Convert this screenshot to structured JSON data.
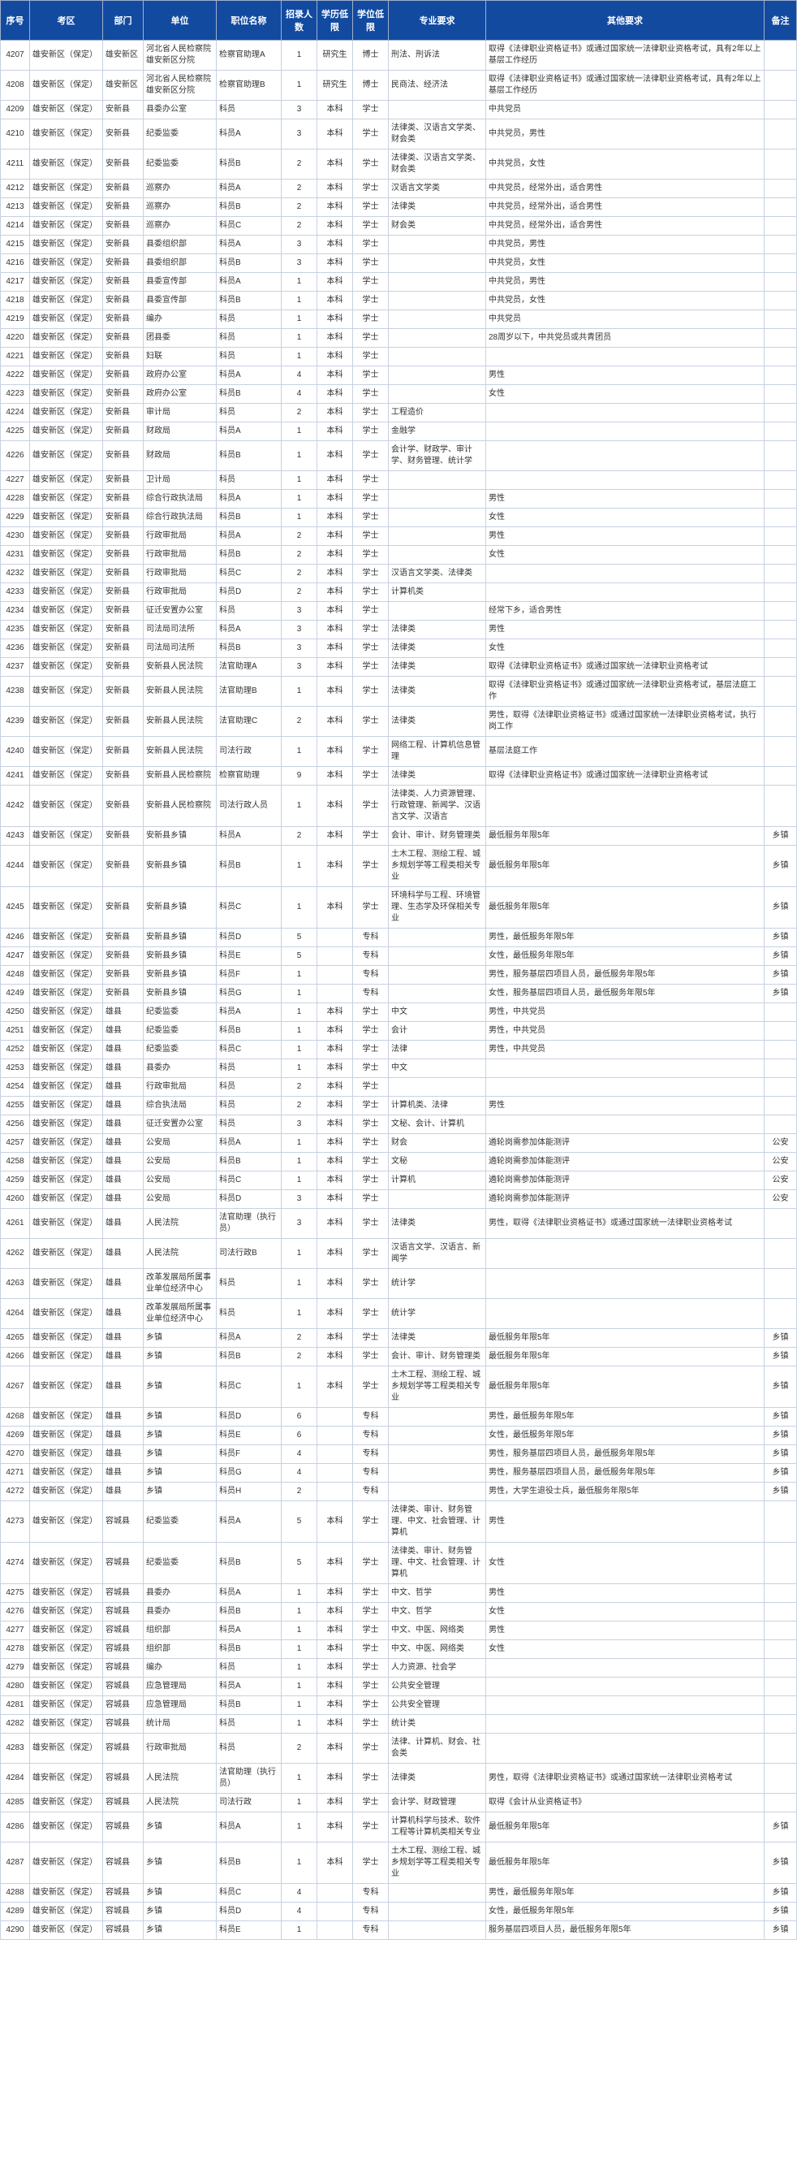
{
  "headers": [
    "序号",
    "考区",
    "部门",
    "单位",
    "职位名称",
    "招录人数",
    "学历低限",
    "学位低限",
    "专业要求",
    "其他要求",
    "备注"
  ],
  "rows": [
    [
      "4207",
      "雄安新区（保定）",
      "雄安新区",
      "河北省人民检察院雄安新区分院",
      "检察官助理A",
      "1",
      "研究生",
      "博士",
      "刑法、刑诉法",
      "取得《法律职业资格证书》或通过国家统一法律职业资格考试，具有2年以上基层工作经历",
      ""
    ],
    [
      "4208",
      "雄安新区（保定）",
      "雄安新区",
      "河北省人民检察院雄安新区分院",
      "检察官助理B",
      "1",
      "研究生",
      "博士",
      "民商法、经济法",
      "取得《法律职业资格证书》或通过国家统一法律职业资格考试，具有2年以上基层工作经历",
      ""
    ],
    [
      "4209",
      "雄安新区（保定）",
      "安新县",
      "县委办公室",
      "科员",
      "3",
      "本科",
      "学士",
      "",
      "中共党员",
      ""
    ],
    [
      "4210",
      "雄安新区（保定）",
      "安新县",
      "纪委监委",
      "科员A",
      "3",
      "本科",
      "学士",
      "法律类、汉语言文学类、财会类",
      "中共党员，男性",
      ""
    ],
    [
      "4211",
      "雄安新区（保定）",
      "安新县",
      "纪委监委",
      "科员B",
      "2",
      "本科",
      "学士",
      "法律类、汉语言文学类、财会类",
      "中共党员，女性",
      ""
    ],
    [
      "4212",
      "雄安新区（保定）",
      "安新县",
      "巡察办",
      "科员A",
      "2",
      "本科",
      "学士",
      "汉语言文学类",
      "中共党员，经常外出，适合男性",
      ""
    ],
    [
      "4213",
      "雄安新区（保定）",
      "安新县",
      "巡察办",
      "科员B",
      "2",
      "本科",
      "学士",
      "法律类",
      "中共党员，经常外出，适合男性",
      ""
    ],
    [
      "4214",
      "雄安新区（保定）",
      "安新县",
      "巡察办",
      "科员C",
      "2",
      "本科",
      "学士",
      "财会类",
      "中共党员，经常外出，适合男性",
      ""
    ],
    [
      "4215",
      "雄安新区（保定）",
      "安新县",
      "县委组织部",
      "科员A",
      "3",
      "本科",
      "学士",
      "",
      "中共党员，男性",
      ""
    ],
    [
      "4216",
      "雄安新区（保定）",
      "安新县",
      "县委组织部",
      "科员B",
      "3",
      "本科",
      "学士",
      "",
      "中共党员，女性",
      ""
    ],
    [
      "4217",
      "雄安新区（保定）",
      "安新县",
      "县委宣传部",
      "科员A",
      "1",
      "本科",
      "学士",
      "",
      "中共党员，男性",
      ""
    ],
    [
      "4218",
      "雄安新区（保定）",
      "安新县",
      "县委宣传部",
      "科员B",
      "1",
      "本科",
      "学士",
      "",
      "中共党员，女性",
      ""
    ],
    [
      "4219",
      "雄安新区（保定）",
      "安新县",
      "编办",
      "科员",
      "1",
      "本科",
      "学士",
      "",
      "中共党员",
      ""
    ],
    [
      "4220",
      "雄安新区（保定）",
      "安新县",
      "团县委",
      "科员",
      "1",
      "本科",
      "学士",
      "",
      "28周岁以下，中共党员或共青团员",
      ""
    ],
    [
      "4221",
      "雄安新区（保定）",
      "安新县",
      "妇联",
      "科员",
      "1",
      "本科",
      "学士",
      "",
      "",
      ""
    ],
    [
      "4222",
      "雄安新区（保定）",
      "安新县",
      "政府办公室",
      "科员A",
      "4",
      "本科",
      "学士",
      "",
      "男性",
      ""
    ],
    [
      "4223",
      "雄安新区（保定）",
      "安新县",
      "政府办公室",
      "科员B",
      "4",
      "本科",
      "学士",
      "",
      "女性",
      ""
    ],
    [
      "4224",
      "雄安新区（保定）",
      "安新县",
      "审计局",
      "科员",
      "2",
      "本科",
      "学士",
      "工程造价",
      "",
      ""
    ],
    [
      "4225",
      "雄安新区（保定）",
      "安新县",
      "财政局",
      "科员A",
      "1",
      "本科",
      "学士",
      "金融学",
      "",
      ""
    ],
    [
      "4226",
      "雄安新区（保定）",
      "安新县",
      "财政局",
      "科员B",
      "1",
      "本科",
      "学士",
      "会计学、财政学、审计学、财务管理、统计学",
      "",
      ""
    ],
    [
      "4227",
      "雄安新区（保定）",
      "安新县",
      "卫计局",
      "科员",
      "1",
      "本科",
      "学士",
      "",
      "",
      ""
    ],
    [
      "4228",
      "雄安新区（保定）",
      "安新县",
      "综合行政执法局",
      "科员A",
      "1",
      "本科",
      "学士",
      "",
      "男性",
      ""
    ],
    [
      "4229",
      "雄安新区（保定）",
      "安新县",
      "综合行政执法局",
      "科员B",
      "1",
      "本科",
      "学士",
      "",
      "女性",
      ""
    ],
    [
      "4230",
      "雄安新区（保定）",
      "安新县",
      "行政审批局",
      "科员A",
      "2",
      "本科",
      "学士",
      "",
      "男性",
      ""
    ],
    [
      "4231",
      "雄安新区（保定）",
      "安新县",
      "行政审批局",
      "科员B",
      "2",
      "本科",
      "学士",
      "",
      "女性",
      ""
    ],
    [
      "4232",
      "雄安新区（保定）",
      "安新县",
      "行政审批局",
      "科员C",
      "2",
      "本科",
      "学士",
      "汉语言文学类、法律类",
      "",
      ""
    ],
    [
      "4233",
      "雄安新区（保定）",
      "安新县",
      "行政审批局",
      "科员D",
      "2",
      "本科",
      "学士",
      "计算机类",
      "",
      ""
    ],
    [
      "4234",
      "雄安新区（保定）",
      "安新县",
      "征迁安置办公室",
      "科员",
      "3",
      "本科",
      "学士",
      "",
      "经常下乡，适合男性",
      ""
    ],
    [
      "4235",
      "雄安新区（保定）",
      "安新县",
      "司法局司法所",
      "科员A",
      "3",
      "本科",
      "学士",
      "法律类",
      "男性",
      ""
    ],
    [
      "4236",
      "雄安新区（保定）",
      "安新县",
      "司法局司法所",
      "科员B",
      "3",
      "本科",
      "学士",
      "法律类",
      "女性",
      ""
    ],
    [
      "4237",
      "雄安新区（保定）",
      "安新县",
      "安新县人民法院",
      "法官助理A",
      "3",
      "本科",
      "学士",
      "法律类",
      "取得《法律职业资格证书》或通过国家统一法律职业资格考试",
      ""
    ],
    [
      "4238",
      "雄安新区（保定）",
      "安新县",
      "安新县人民法院",
      "法官助理B",
      "1",
      "本科",
      "学士",
      "法律类",
      "取得《法律职业资格证书》或通过国家统一法律职业资格考试，基层法庭工作",
      ""
    ],
    [
      "4239",
      "雄安新区（保定）",
      "安新县",
      "安新县人民法院",
      "法官助理C",
      "2",
      "本科",
      "学士",
      "法律类",
      "男性，取得《法律职业资格证书》或通过国家统一法律职业资格考试，执行岗工作",
      ""
    ],
    [
      "4240",
      "雄安新区（保定）",
      "安新县",
      "安新县人民法院",
      "司法行政",
      "1",
      "本科",
      "学士",
      "网络工程、计算机信息管理",
      "基层法庭工作",
      ""
    ],
    [
      "4241",
      "雄安新区（保定）",
      "安新县",
      "安新县人民检察院",
      "检察官助理",
      "9",
      "本科",
      "学士",
      "法律类",
      "取得《法律职业资格证书》或通过国家统一法律职业资格考试",
      ""
    ],
    [
      "4242",
      "雄安新区（保定）",
      "安新县",
      "安新县人民检察院",
      "司法行政人员",
      "1",
      "本科",
      "学士",
      "法律类、人力资源管理、行政管理、新闻学、汉语言文学、汉语言",
      "",
      ""
    ],
    [
      "4243",
      "雄安新区（保定）",
      "安新县",
      "安新县乡镇",
      "科员A",
      "2",
      "本科",
      "学士",
      "会计、审计、财务管理类",
      "最低服务年限5年",
      "乡镇"
    ],
    [
      "4244",
      "雄安新区（保定）",
      "安新县",
      "安新县乡镇",
      "科员B",
      "1",
      "本科",
      "学士",
      "土木工程、测绘工程、城乡规划学等工程类相关专业",
      "最低服务年限5年",
      "乡镇"
    ],
    [
      "4245",
      "雄安新区（保定）",
      "安新县",
      "安新县乡镇",
      "科员C",
      "1",
      "本科",
      "学士",
      "环境科学与工程、环境管理、生态学及环保相关专业",
      "最低服务年限5年",
      "乡镇"
    ],
    [
      "4246",
      "雄安新区（保定）",
      "安新县",
      "安新县乡镇",
      "科员D",
      "5",
      "",
      "专科",
      "",
      "男性，最低服务年限5年",
      "乡镇"
    ],
    [
      "4247",
      "雄安新区（保定）",
      "安新县",
      "安新县乡镇",
      "科员E",
      "5",
      "",
      "专科",
      "",
      "女性，最低服务年限5年",
      "乡镇"
    ],
    [
      "4248",
      "雄安新区（保定）",
      "安新县",
      "安新县乡镇",
      "科员F",
      "1",
      "",
      "专科",
      "",
      "男性，服务基层四项目人员，最低服务年限5年",
      "乡镇"
    ],
    [
      "4249",
      "雄安新区（保定）",
      "安新县",
      "安新县乡镇",
      "科员G",
      "1",
      "",
      "专科",
      "",
      "女性，服务基层四项目人员，最低服务年限5年",
      "乡镇"
    ],
    [
      "4250",
      "雄安新区（保定）",
      "雄县",
      "纪委监委",
      "科员A",
      "1",
      "本科",
      "学士",
      "中文",
      "男性，中共党员",
      ""
    ],
    [
      "4251",
      "雄安新区（保定）",
      "雄县",
      "纪委监委",
      "科员B",
      "1",
      "本科",
      "学士",
      "会计",
      "男性，中共党员",
      ""
    ],
    [
      "4252",
      "雄安新区（保定）",
      "雄县",
      "纪委监委",
      "科员C",
      "1",
      "本科",
      "学士",
      "法律",
      "男性，中共党员",
      ""
    ],
    [
      "4253",
      "雄安新区（保定）",
      "雄县",
      "县委办",
      "科员",
      "1",
      "本科",
      "学士",
      "中文",
      "",
      ""
    ],
    [
      "4254",
      "雄安新区（保定）",
      "雄县",
      "行政审批局",
      "科员",
      "2",
      "本科",
      "学士",
      "",
      "",
      ""
    ],
    [
      "4255",
      "雄安新区（保定）",
      "雄县",
      "综合执法局",
      "科员",
      "2",
      "本科",
      "学士",
      "计算机类、法律",
      "男性",
      ""
    ],
    [
      "4256",
      "雄安新区（保定）",
      "雄县",
      "征迁安置办公室",
      "科员",
      "3",
      "本科",
      "学士",
      "文秘、会计、计算机",
      "",
      ""
    ],
    [
      "4257",
      "雄安新区（保定）",
      "雄县",
      "公安局",
      "科员A",
      "1",
      "本科",
      "学士",
      "财会",
      "遴轮岗需参加体能测评",
      "公安"
    ],
    [
      "4258",
      "雄安新区（保定）",
      "雄县",
      "公安局",
      "科员B",
      "1",
      "本科",
      "学士",
      "文秘",
      "遴轮岗需参加体能测评",
      "公安"
    ],
    [
      "4259",
      "雄安新区（保定）",
      "雄县",
      "公安局",
      "科员C",
      "1",
      "本科",
      "学士",
      "计算机",
      "遴轮岗需参加体能测评",
      "公安"
    ],
    [
      "4260",
      "雄安新区（保定）",
      "雄县",
      "公安局",
      "科员D",
      "3",
      "本科",
      "学士",
      "",
      "遴轮岗需参加体能测评",
      "公安"
    ],
    [
      "4261",
      "雄安新区（保定）",
      "雄县",
      "人民法院",
      "法官助理（执行员）",
      "3",
      "本科",
      "学士",
      "法律类",
      "男性，取得《法律职业资格证书》或通过国家统一法律职业资格考试",
      ""
    ],
    [
      "4262",
      "雄安新区（保定）",
      "雄县",
      "人民法院",
      "司法行政B",
      "1",
      "本科",
      "学士",
      "汉语言文学、汉语言、新闻学",
      "",
      ""
    ],
    [
      "4263",
      "雄安新区（保定）",
      "雄县",
      "改革发展局所属事业单位经济中心",
      "科员",
      "1",
      "本科",
      "学士",
      "统计学",
      "",
      ""
    ],
    [
      "4264",
      "雄安新区（保定）",
      "雄县",
      "改革发展局所属事业单位经济中心",
      "科员",
      "1",
      "本科",
      "学士",
      "统计学",
      "",
      ""
    ],
    [
      "4265",
      "雄安新区（保定）",
      "雄县",
      "乡镇",
      "科员A",
      "2",
      "本科",
      "学士",
      "法律类",
      "最低服务年限5年",
      "乡镇"
    ],
    [
      "4266",
      "雄安新区（保定）",
      "雄县",
      "乡镇",
      "科员B",
      "2",
      "本科",
      "学士",
      "会计、审计、财务管理类",
      "最低服务年限5年",
      "乡镇"
    ],
    [
      "4267",
      "雄安新区（保定）",
      "雄县",
      "乡镇",
      "科员C",
      "1",
      "本科",
      "学士",
      "土木工程、测绘工程、城乡规划学等工程类相关专业",
      "最低服务年限5年",
      "乡镇"
    ],
    [
      "4268",
      "雄安新区（保定）",
      "雄县",
      "乡镇",
      "科员D",
      "6",
      "",
      "专科",
      "",
      "男性，最低服务年限5年",
      "乡镇"
    ],
    [
      "4269",
      "雄安新区（保定）",
      "雄县",
      "乡镇",
      "科员E",
      "6",
      "",
      "专科",
      "",
      "女性，最低服务年限5年",
      "乡镇"
    ],
    [
      "4270",
      "雄安新区（保定）",
      "雄县",
      "乡镇",
      "科员F",
      "4",
      "",
      "专科",
      "",
      "男性，服务基层四项目人员，最低服务年限5年",
      "乡镇"
    ],
    [
      "4271",
      "雄安新区（保定）",
      "雄县",
      "乡镇",
      "科员G",
      "4",
      "",
      "专科",
      "",
      "男性，服务基层四项目人员，最低服务年限5年",
      "乡镇"
    ],
    [
      "4272",
      "雄安新区（保定）",
      "雄县",
      "乡镇",
      "科员H",
      "2",
      "",
      "专科",
      "",
      "男性，大学生退役士兵，最低服务年限5年",
      "乡镇"
    ],
    [
      "4273",
      "雄安新区（保定）",
      "容城县",
      "纪委监委",
      "科员A",
      "5",
      "本科",
      "学士",
      "法律类、审计、财务管理、中文、社会管理、计算机",
      "男性",
      ""
    ],
    [
      "4274",
      "雄安新区（保定）",
      "容城县",
      "纪委监委",
      "科员B",
      "5",
      "本科",
      "学士",
      "法律类、审计、财务管理、中文、社会管理、计算机",
      "女性",
      ""
    ],
    [
      "4275",
      "雄安新区（保定）",
      "容城县",
      "县委办",
      "科员A",
      "1",
      "本科",
      "学士",
      "中文、哲学",
      "男性",
      ""
    ],
    [
      "4276",
      "雄安新区（保定）",
      "容城县",
      "县委办",
      "科员B",
      "1",
      "本科",
      "学士",
      "中文、哲学",
      "女性",
      ""
    ],
    [
      "4277",
      "雄安新区（保定）",
      "容城县",
      "组织部",
      "科员A",
      "1",
      "本科",
      "学士",
      "中文、中医、网络类",
      "男性",
      ""
    ],
    [
      "4278",
      "雄安新区（保定）",
      "容城县",
      "组织部",
      "科员B",
      "1",
      "本科",
      "学士",
      "中文、中医、网络类",
      "女性",
      ""
    ],
    [
      "4279",
      "雄安新区（保定）",
      "容城县",
      "编办",
      "科员",
      "1",
      "本科",
      "学士",
      "人力资源、社会学",
      "",
      ""
    ],
    [
      "4280",
      "雄安新区（保定）",
      "容城县",
      "应急管理局",
      "科员A",
      "1",
      "本科",
      "学士",
      "公共安全管理",
      "",
      ""
    ],
    [
      "4281",
      "雄安新区（保定）",
      "容城县",
      "应急管理局",
      "科员B",
      "1",
      "本科",
      "学士",
      "公共安全管理",
      "",
      ""
    ],
    [
      "4282",
      "雄安新区（保定）",
      "容城县",
      "统计局",
      "科员",
      "1",
      "本科",
      "学士",
      "统计类",
      "",
      ""
    ],
    [
      "4283",
      "雄安新区（保定）",
      "容城县",
      "行政审批局",
      "科员",
      "2",
      "本科",
      "学士",
      "法律、计算机、财会、社会类",
      "",
      ""
    ],
    [
      "4284",
      "雄安新区（保定）",
      "容城县",
      "人民法院",
      "法官助理（执行员）",
      "1",
      "本科",
      "学士",
      "法律类",
      "男性，取得《法律职业资格证书》或通过国家统一法律职业资格考试",
      ""
    ],
    [
      "4285",
      "雄安新区（保定）",
      "容城县",
      "人民法院",
      "司法行政",
      "1",
      "本科",
      "学士",
      "会计学、财政管理",
      "取得《会计从业资格证书》",
      ""
    ],
    [
      "4286",
      "雄安新区（保定）",
      "容城县",
      "乡镇",
      "科员A",
      "1",
      "本科",
      "学士",
      "计算机科学与技术、软件工程等计算机类相关专业",
      "最低服务年限5年",
      "乡镇"
    ],
    [
      "4287",
      "雄安新区（保定）",
      "容城县",
      "乡镇",
      "科员B",
      "1",
      "本科",
      "学士",
      "土木工程、测绘工程、城乡规划学等工程类相关专业",
      "最低服务年限5年",
      "乡镇"
    ],
    [
      "4288",
      "雄安新区（保定）",
      "容城县",
      "乡镇",
      "科员C",
      "4",
      "",
      "专科",
      "",
      "男性，最低服务年限5年",
      "乡镇"
    ],
    [
      "4289",
      "雄安新区（保定）",
      "容城县",
      "乡镇",
      "科员D",
      "4",
      "",
      "专科",
      "",
      "女性，最低服务年限5年",
      "乡镇"
    ],
    [
      "4290",
      "雄安新区（保定）",
      "容城县",
      "乡镇",
      "科员E",
      "1",
      "",
      "专科",
      "",
      "服务基层四项目人员，最低服务年限5年",
      "乡镇"
    ]
  ]
}
